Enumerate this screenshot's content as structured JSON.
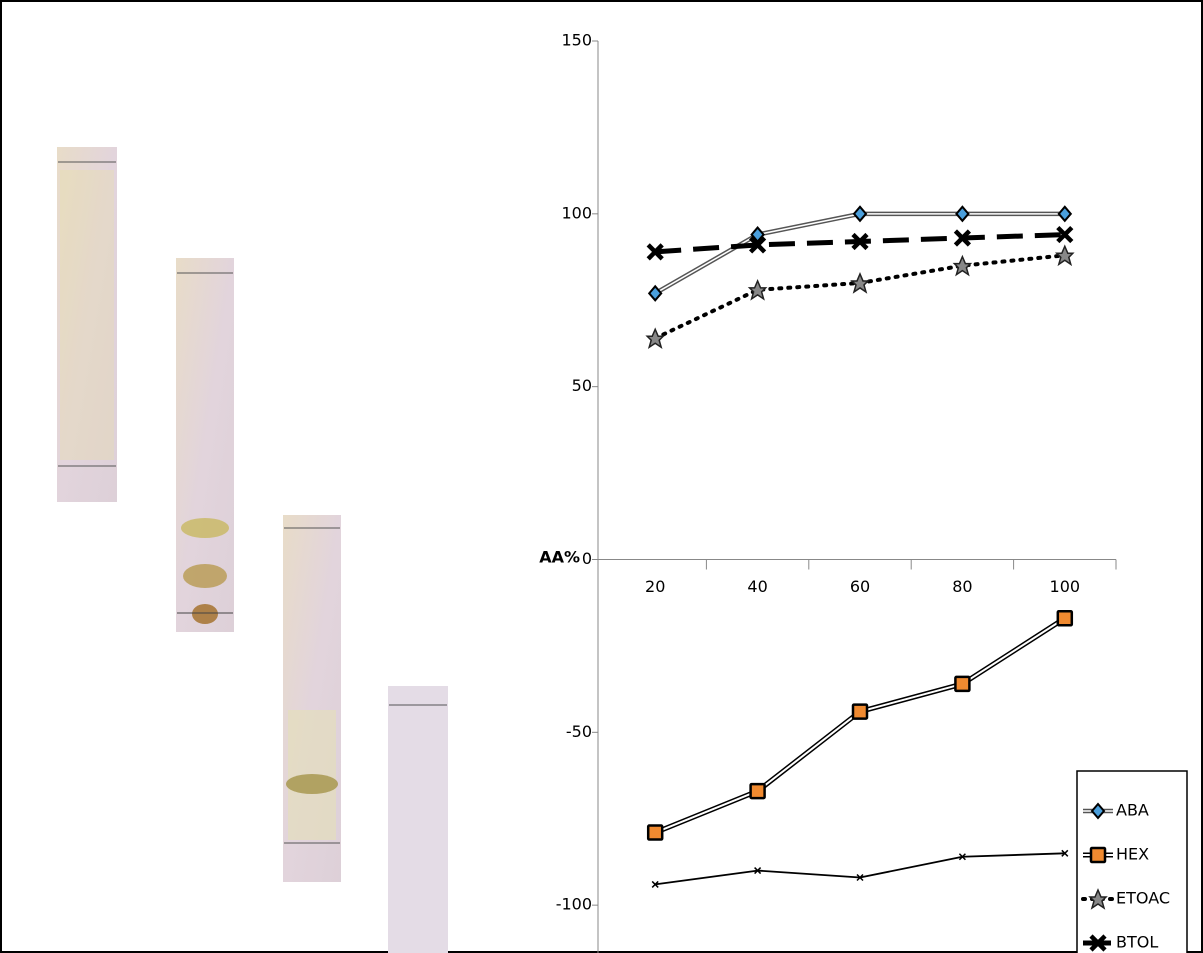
{
  "chart_data": {
    "type": "line",
    "y_label": "AA%",
    "categories": [
      "20",
      "40",
      "60",
      "80",
      "100"
    ],
    "series": [
      {
        "name": "ABA",
        "color": "#4a9fdc",
        "values": [
          77,
          94,
          100,
          100,
          100
        ]
      },
      {
        "name": "HEX",
        "color": "#f08a30",
        "values": [
          -79,
          -67,
          -44,
          -36,
          -17
        ]
      },
      {
        "name": "ETOAC",
        "color": "#888888",
        "values": [
          64,
          78,
          80,
          85,
          88
        ]
      },
      {
        "name": "BTOL",
        "color": "#000000",
        "values": [
          89,
          91,
          92,
          93,
          94
        ]
      },
      {
        "color": "#000000",
        "values": [
          -94,
          -90,
          -92,
          -86,
          -85
        ]
      }
    ],
    "ylim": [
      -115,
      150
    ],
    "yticks": [
      -100,
      -50,
      0,
      50,
      100,
      150
    ],
    "legend": "right"
  }
}
